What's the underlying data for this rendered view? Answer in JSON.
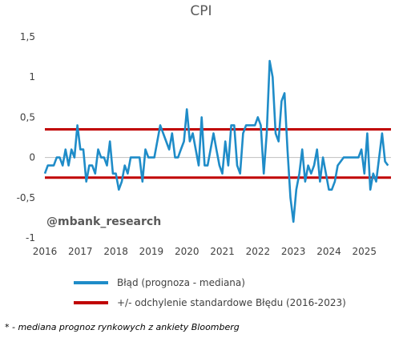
{
  "watermark": "@mbank_research",
  "footnote": "* - mediana prognoz rynkowych z ankiety Bloomberg",
  "colors": {
    "error_line": "#1F8CC8",
    "band_lines": "#C00000",
    "zero_line": "#BFBFBF"
  },
  "chart_data": {
    "type": "line",
    "title": "CPI",
    "xlabel": "",
    "ylabel": "",
    "ylim": [
      -1,
      1.5
    ],
    "yticks": [
      "-1",
      "-0,5",
      "0",
      "0,5",
      "1",
      "1,5"
    ],
    "ytick_values": [
      -1,
      -0.5,
      0,
      0.5,
      1,
      1.5
    ],
    "xticks": [
      "2016",
      "2017",
      "2018",
      "2019",
      "2020",
      "2021",
      "2022",
      "2023",
      "2024",
      "2025"
    ],
    "xtick_values": [
      2016,
      2017,
      2018,
      2019,
      2020,
      2021,
      2022,
      2023,
      2024,
      2025
    ],
    "xlim": [
      2016,
      2025.75
    ],
    "grid": false,
    "legend_position": "bottom",
    "series": [
      {
        "name": "Błąd (prognoza - mediana)",
        "x": [
          2016.0,
          2016.083,
          2016.167,
          2016.25,
          2016.333,
          2016.417,
          2016.5,
          2016.583,
          2016.667,
          2016.75,
          2016.833,
          2016.917,
          2017.0,
          2017.083,
          2017.167,
          2017.25,
          2017.333,
          2017.417,
          2017.5,
          2017.583,
          2017.667,
          2017.75,
          2017.833,
          2017.917,
          2018.0,
          2018.083,
          2018.167,
          2018.25,
          2018.333,
          2018.417,
          2018.5,
          2018.583,
          2018.667,
          2018.75,
          2018.833,
          2018.917,
          2019.0,
          2019.083,
          2019.167,
          2019.25,
          2019.333,
          2019.417,
          2019.5,
          2019.583,
          2019.667,
          2019.75,
          2019.833,
          2019.917,
          2020.0,
          2020.083,
          2020.167,
          2020.25,
          2020.333,
          2020.417,
          2020.5,
          2020.583,
          2020.667,
          2020.75,
          2020.833,
          2020.917,
          2021.0,
          2021.083,
          2021.167,
          2021.25,
          2021.333,
          2021.417,
          2021.5,
          2021.583,
          2021.667,
          2021.75,
          2021.833,
          2021.917,
          2022.0,
          2022.083,
          2022.167,
          2022.25,
          2022.333,
          2022.417,
          2022.5,
          2022.583,
          2022.667,
          2022.75,
          2022.833,
          2022.917,
          2023.0,
          2023.083,
          2023.167,
          2023.25,
          2023.333,
          2023.417,
          2023.5,
          2023.583,
          2023.667,
          2023.75,
          2023.833,
          2023.917,
          2024.0,
          2024.083,
          2024.167,
          2024.25,
          2024.333,
          2024.417,
          2024.5,
          2024.583,
          2024.667,
          2024.75,
          2024.833,
          2024.917,
          2025.0,
          2025.083,
          2025.167,
          2025.25,
          2025.333,
          2025.417,
          2025.5,
          2025.583,
          2025.667
        ],
        "values": [
          -0.2,
          -0.1,
          -0.1,
          -0.1,
          0.0,
          0.0,
          -0.1,
          0.1,
          -0.1,
          0.1,
          0.0,
          0.4,
          0.1,
          0.1,
          -0.3,
          -0.1,
          -0.1,
          -0.2,
          0.1,
          0.0,
          0.0,
          -0.1,
          0.2,
          -0.2,
          -0.2,
          -0.4,
          -0.3,
          -0.1,
          -0.2,
          0.0,
          0.0,
          0.0,
          0.0,
          -0.3,
          0.1,
          0.0,
          0.0,
          0.0,
          0.2,
          0.4,
          0.3,
          0.2,
          0.1,
          0.3,
          0.0,
          0.0,
          0.1,
          0.2,
          0.6,
          0.2,
          0.3,
          0.1,
          -0.1,
          0.5,
          -0.1,
          -0.1,
          0.1,
          0.3,
          0.1,
          -0.1,
          -0.2,
          0.2,
          -0.1,
          0.4,
          0.4,
          -0.1,
          -0.2,
          0.3,
          0.4,
          0.4,
          0.4,
          0.4,
          0.5,
          0.4,
          -0.2,
          0.3,
          1.2,
          1.0,
          0.3,
          0.2,
          0.7,
          0.8,
          0.1,
          -0.5,
          -0.8,
          -0.4,
          -0.2,
          0.1,
          -0.3,
          -0.1,
          -0.2,
          -0.1,
          0.1,
          -0.3,
          0.0,
          -0.2,
          -0.4,
          -0.4,
          -0.3,
          -0.1,
          -0.05,
          0.0,
          0.0,
          0.0,
          0.0,
          0.0,
          0.0,
          0.1,
          -0.2,
          0.3,
          -0.4,
          -0.2,
          -0.3,
          0.0,
          0.3,
          -0.05,
          -0.1
        ]
      },
      {
        "name": "+/- odchylenie standardowe Błędu (2016-2023)",
        "upper": 0.35,
        "lower": -0.25
      }
    ]
  }
}
